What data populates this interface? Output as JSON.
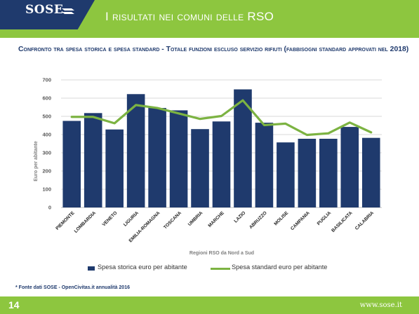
{
  "header": {
    "logo_text": "SOSE",
    "title": "I risultati nei comuni delle RSO"
  },
  "subtitle": "Confronto tra spesa storica e spesa standard - Totale funzioni escluso servizio rifiuti (fabbisogni standard approvati nel 2018)",
  "footnote": "* Fonte dati SOSE - OpenCivitas.it annualità 2016",
  "footer": {
    "page_number": "14",
    "url": "www.sose.it"
  },
  "colors": {
    "bar": "#1f3a6d",
    "line": "#7cb342",
    "accent": "#8dc63f"
  },
  "chart_data": {
    "type": "bar",
    "title": "",
    "xlabel": "Regioni RSO da Nord a Sud",
    "ylabel": "Euro per abitante",
    "ylim": [
      0,
      700
    ],
    "yticks": [
      0,
      100,
      200,
      300,
      400,
      500,
      600,
      700
    ],
    "grid": true,
    "legend_position": "bottom",
    "categories": [
      "PIEMONTE",
      "LOMBARDIA",
      "VENETO",
      "LIGURIA",
      "EMILIA-ROMAGNA",
      "TOSCANA",
      "UMBRIA",
      "MARCHE",
      "LAZIO",
      "ABRUZZO",
      "MOLISE",
      "CAMPANIA",
      "PUGLIA",
      "BASILICATA",
      "CALABRIA"
    ],
    "series": [
      {
        "name": "Spesa storica euro per abitante",
        "type": "bar",
        "values": [
          475,
          518,
          428,
          622,
          546,
          533,
          430,
          472,
          648,
          465,
          357,
          377,
          377,
          442,
          382
        ]
      },
      {
        "name": "Spesa standard euro per abitante",
        "type": "line",
        "values": [
          497,
          497,
          462,
          562,
          546,
          516,
          486,
          502,
          588,
          452,
          460,
          398,
          407,
          466,
          412
        ]
      }
    ]
  }
}
